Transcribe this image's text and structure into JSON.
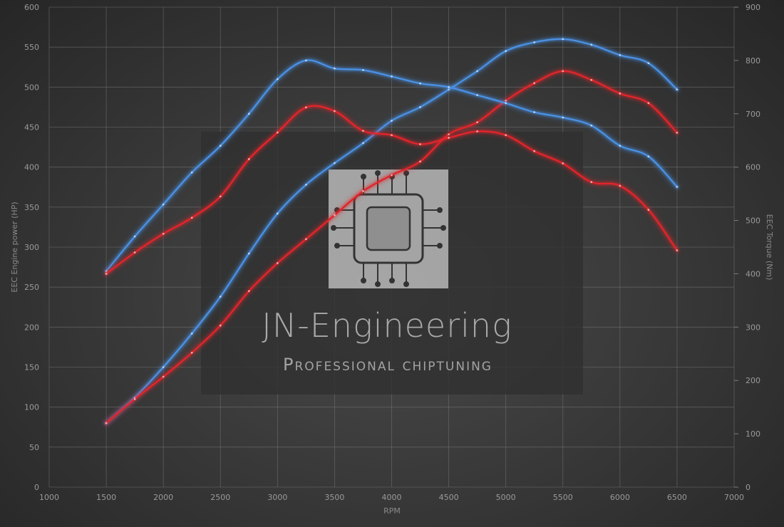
{
  "chart_data": {
    "type": "line",
    "xlabel": "RPM",
    "ylabel_left": "EEC Engine power (HP)",
    "ylabel_right": "EEC Torque (Nm)",
    "xlim": [
      1000,
      7000
    ],
    "xticks": [
      1000,
      1500,
      2000,
      2500,
      3000,
      3500,
      4000,
      4500,
      5000,
      5500,
      6000,
      6500,
      7000
    ],
    "ylim_left": [
      0,
      600
    ],
    "yticks_left": [
      0,
      50,
      100,
      150,
      200,
      250,
      300,
      350,
      400,
      450,
      500,
      550,
      600
    ],
    "ylim_right": [
      0,
      900
    ],
    "yticks_right": [
      0,
      100,
      200,
      300,
      400,
      500,
      600,
      700,
      800,
      900
    ],
    "grid": true,
    "colors": {
      "tuned": "#4a90e2",
      "stock": "#e0252b"
    },
    "series": [
      {
        "axis": "left",
        "color": "tuned",
        "x": [
          1500,
          1750,
          2000,
          2250,
          2500,
          2750,
          3000,
          3250,
          3500,
          3750,
          4000,
          4250,
          4500,
          4750,
          5000,
          5250,
          5500,
          5750,
          6000,
          6250,
          6500
        ],
        "values": [
          80,
          112,
          150,
          192,
          238,
          292,
          342,
          378,
          405,
          430,
          458,
          475,
          497,
          520,
          545,
          556,
          560,
          553,
          540,
          530,
          497
        ]
      },
      {
        "axis": "left",
        "color": "stock",
        "x": [
          1500,
          1750,
          2000,
          2250,
          2500,
          2750,
          3000,
          3250,
          3500,
          3750,
          4000,
          4250,
          4500,
          4750,
          5000,
          5250,
          5500,
          5750,
          6000,
          6250,
          6500
        ],
        "values": [
          80,
          110,
          138,
          168,
          202,
          245,
          280,
          310,
          340,
          370,
          390,
          407,
          441,
          456,
          483,
          505,
          520,
          509,
          492,
          480,
          443
        ]
      },
      {
        "axis": "right",
        "color": "tuned",
        "x": [
          1500,
          1750,
          2000,
          2250,
          2500,
          2750,
          3000,
          3250,
          3500,
          3750,
          4000,
          4250,
          4500,
          4750,
          5000,
          5250,
          5500,
          5750,
          6000,
          6250,
          6500
        ],
        "values": [
          405,
          470,
          530,
          590,
          640,
          700,
          765,
          800,
          785,
          782,
          770,
          757,
          750,
          735,
          720,
          703,
          693,
          678,
          640,
          620,
          563
        ]
      },
      {
        "axis": "right",
        "color": "stock",
        "x": [
          1500,
          1750,
          2000,
          2250,
          2500,
          2750,
          3000,
          3250,
          3500,
          3750,
          4000,
          4250,
          4500,
          4750,
          5000,
          5250,
          5500,
          5750,
          6000,
          6250,
          6500
        ],
        "values": [
          400,
          440,
          475,
          505,
          545,
          615,
          665,
          712,
          705,
          668,
          660,
          643,
          655,
          667,
          660,
          630,
          607,
          572,
          565,
          520,
          444
        ]
      }
    ]
  },
  "watermark": {
    "title": "JN-Engineering",
    "subtitle": "Professional chiptuning",
    "logo_icon": "microchip-icon"
  }
}
